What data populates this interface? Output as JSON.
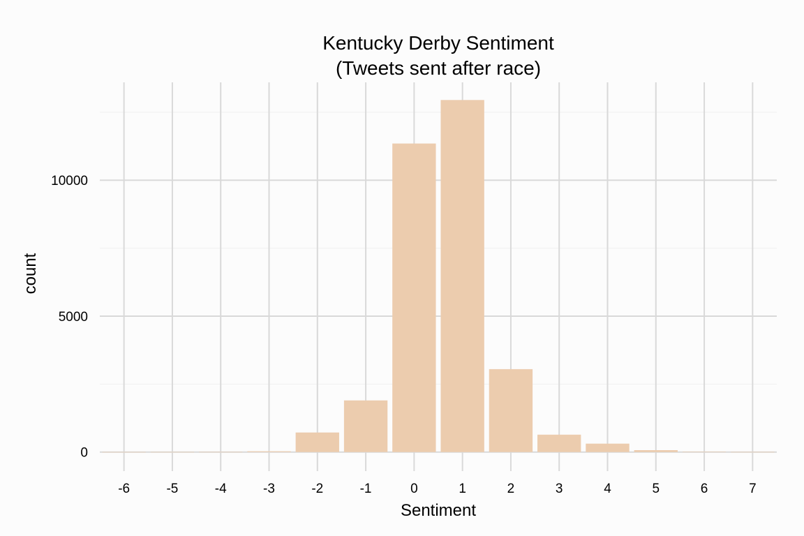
{
  "chart_data": {
    "type": "bar",
    "title": [
      "Kentucky Derby Sentiment",
      "(Tweets sent after race)"
    ],
    "xlabel": "Sentiment",
    "ylabel": "count",
    "x_ticks": [
      -6,
      -5,
      -4,
      -3,
      -2,
      -1,
      0,
      1,
      2,
      3,
      4,
      5,
      6,
      7
    ],
    "y_ticks": [
      0,
      5000,
      10000
    ],
    "xlim": [
      -6.5,
      7.5
    ],
    "ylim": [
      -700,
      13600
    ],
    "grid": true,
    "bar_color": "#ecccae",
    "categories": [
      -6,
      -5,
      -4,
      -3,
      -2,
      -1,
      0,
      1,
      2,
      3,
      4,
      5,
      6,
      7
    ],
    "values": [
      2,
      3,
      5,
      30,
      720,
      1900,
      11350,
      12950,
      3050,
      640,
      310,
      70,
      10,
      4
    ]
  }
}
